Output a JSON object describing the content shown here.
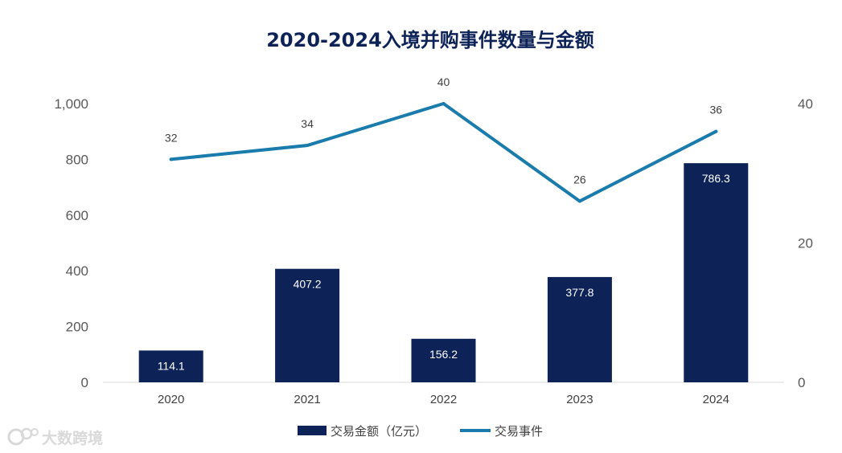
{
  "chart_data": {
    "type": "bar",
    "title": "2020-2024入境并购事件数量与金额",
    "categories": [
      "2020",
      "2021",
      "2022",
      "2023",
      "2024"
    ],
    "series": [
      {
        "name": "交易金额（亿元）",
        "kind": "bar",
        "axis": "left",
        "color": "#0d2257",
        "values": [
          114.1,
          407.2,
          156.2,
          377.8,
          786.3
        ],
        "labels": [
          "114.1",
          "407.2",
          "156.2",
          "377.8",
          "786.3"
        ]
      },
      {
        "name": "交易事件",
        "kind": "line",
        "axis": "right",
        "color": "#1a7bad",
        "values": [
          32,
          34,
          40,
          26,
          36
        ],
        "labels": [
          "32",
          "34",
          "40",
          "26",
          "36"
        ]
      }
    ],
    "y_left": {
      "range": [
        0,
        1000
      ],
      "ticks": [
        0,
        200,
        400,
        600,
        800,
        1000
      ],
      "tick_labels": [
        "0",
        "200",
        "400",
        "600",
        "800",
        "1,000"
      ]
    },
    "y_right": {
      "range": [
        0,
        40
      ],
      "ticks": [
        0,
        20,
        40
      ],
      "tick_labels": [
        "0",
        "20",
        "40"
      ]
    },
    "grid": false,
    "legend_position": "bottom-center"
  },
  "watermark": {
    "text": "大数跨境",
    "icon": "dashuju-logo-icon"
  }
}
